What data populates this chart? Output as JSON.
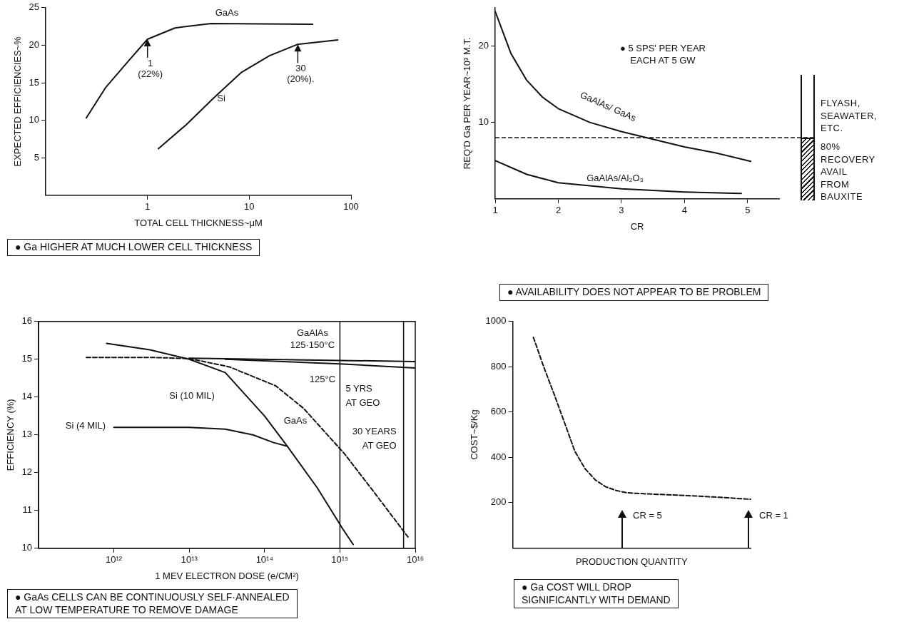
{
  "chart_data": [
    {
      "type": "line",
      "xlabel": "TOTAL CELL THICKNESS~μM",
      "ylabel": "EXPECTED EFFICIENCIES~%",
      "log": "x",
      "xlim": [
        0.1,
        100
      ],
      "xticks": [
        1,
        10,
        100
      ],
      "ylim": [
        0,
        25
      ],
      "yticks": [
        5,
        10,
        15,
        20,
        25
      ],
      "series": [
        {
          "color": "#111111",
          "x": [
            0.25,
            0.39,
            0.64,
            1.0,
            1.86,
            4.2,
            42
          ],
          "values": [
            10.3,
            14.4,
            17.8,
            20.8,
            22.3,
            22.9,
            22.8
          ]
        },
        {
          "color": "#111111",
          "x": [
            1.28,
            2.4,
            4.5,
            8.4,
            15.8,
            29.6,
            74
          ],
          "values": [
            6.2,
            9.4,
            13.0,
            16.4,
            18.6,
            20.1,
            20.7
          ]
        }
      ],
      "annotations": [
        "GaAs",
        "Si",
        {
          "text": "1\n(22%)",
          "x": 1,
          "y": 20.8
        },
        {
          "text": "30\n(20%).",
          "x": 30,
          "y": 20.1
        },
        "● Ga HIGHER AT MUCH LOWER CELL THICKNESS"
      ]
    },
    {
      "type": "line",
      "xlabel": "CR",
      "ylabel": "REQ'D Ga PER YEAR~10³ M.T.",
      "xlim": [
        1,
        5.5
      ],
      "xticks": [
        1,
        2,
        3,
        4,
        5
      ],
      "ylim": [
        0,
        25
      ],
      "yticks": [
        10,
        20
      ],
      "series": [
        {
          "color": "#111111",
          "x": [
            1,
            1.25,
            1.5,
            1.75,
            2,
            2.5,
            3,
            3.5,
            4,
            4.5,
            5.05
          ],
          "values": [
            24.5,
            19,
            15.5,
            13.3,
            11.8,
            10,
            8.8,
            7.8,
            6.8,
            6,
            4.9
          ]
        },
        {
          "color": "#111111",
          "x": [
            1,
            1.5,
            2,
            3,
            4,
            4.9
          ],
          "values": [
            5,
            3.2,
            2.1,
            1.3,
            0.9,
            0.7
          ]
        }
      ],
      "ref_lines": [
        {
          "axis": "y",
          "value": 8,
          "line_style": "dashed"
        }
      ],
      "annotations": [
        "GaAlAs/ GaAs",
        "GaAlAs/Al₂O₃",
        "● 5 SPS' PER YEAR\nEACH AT 5 GW",
        "FLYASH,\nSEAWATER,\nETC.",
        "80%\nRECOVERY\nAVAIL\nFROM\nBAUXITE",
        "● AVAILABILITY DOES NOT APPEAR TO BE PROBLEM"
      ]
    },
    {
      "type": "line",
      "xlabel": "1 MEV ELECTRON DOSE (e/CM²)",
      "ylabel": "EFFICIENCY (%)",
      "log": "x",
      "xlim": [
        100000000000.0,
        1e+16
      ],
      "xticks": [
        {
          "value": 1000000000000.0,
          "label": "10¹²"
        },
        {
          "value": 10000000000000.0,
          "label": "10¹³"
        },
        {
          "value": 100000000000000.0,
          "label": "10¹⁴"
        },
        {
          "value": 1000000000000000.0,
          "label": "10¹⁵"
        },
        {
          "value": 1e+16,
          "label": "10¹⁶"
        }
      ],
      "ylim": [
        10,
        16
      ],
      "yticks": [
        10,
        11,
        12,
        13,
        14,
        15,
        16
      ],
      "series": [
        {
          "color": "#111111",
          "x": [
            800000000000.0,
            3000000000000.0,
            10000000000000.0,
            30000000000000.0,
            100000000000000.0,
            200000000000000.0,
            500000000000000.0,
            1100000000000000.0,
            1500000000000000.0
          ],
          "values": [
            15.42,
            15.25,
            15.0,
            14.65,
            13.5,
            12.7,
            11.6,
            10.5,
            10.1
          ]
        },
        {
          "color": "#111111",
          "x": [
            1000000000000.0,
            3000000000000.0,
            10000000000000.0,
            30000000000000.0,
            70000000000000.0,
            130000000000000.0,
            200000000000000.0
          ],
          "values": [
            13.2,
            13.2,
            13.2,
            13.15,
            13.0,
            12.8,
            12.7
          ]
        },
        {
          "color": "#111111",
          "line_style": "dashed",
          "x": [
            430000000000.0,
            3000000000000.0,
            10000000000000.0,
            34000000000000.0,
            140000000000000.0,
            330000000000000.0,
            1150000000000000.0,
            2800000000000000.0,
            8000000000000000.0
          ],
          "values": [
            15.05,
            15.05,
            15.02,
            14.8,
            14.3,
            13.7,
            12.5,
            11.5,
            10.3
          ]
        },
        {
          "color": "#111111",
          "x": [
            10000000000000.0,
            1e+16
          ],
          "values": [
            15.03,
            14.94
          ]
        },
        {
          "color": "#111111",
          "x": [
            30000000000000.0,
            1000000000000000.0,
            1e+16
          ],
          "values": [
            15.0,
            14.88,
            14.77
          ]
        }
      ],
      "ref_lines": [
        {
          "axis": "x",
          "value": 1000000000000000.0,
          "label": "5 YRS AT GEO"
        },
        {
          "axis": "x",
          "value": 7000000000000000.0,
          "label": "30 YEARS AT GEO"
        }
      ],
      "annotations": [
        "GaAlAs\n125·150°C",
        "125°C",
        "Si (10 MIL)",
        "Si (4 MIL)",
        "GaAs",
        "● GaAs CELLS CAN BE CONTINUOUSLY SELF·ANNEALED\nAT LOW TEMPERATURE TO REMOVE DAMAGE"
      ]
    },
    {
      "type": "line",
      "xlabel": "PRODUCTION QUANTITY",
      "ylabel": "COST~$/Kg",
      "tick_labels": "y",
      "line_style": "dashed",
      "categories": [
        null,
        null,
        null,
        null,
        null,
        null,
        null,
        null,
        null,
        null,
        null,
        null,
        null,
        null,
        null,
        null,
        null,
        null,
        null,
        null,
        null,
        null,
        null,
        null
      ],
      "ylim": [
        0,
        1000
      ],
      "yticks": [
        200,
        400,
        600,
        800,
        1000
      ],
      "series": [
        {
          "color": "#111111",
          "values": [
            null,
            null,
            930,
            800,
            680,
            555,
            428,
            350,
            300,
            270,
            254,
            244,
            241,
            239,
            237,
            235,
            233,
            231,
            229,
            226,
            224,
            221,
            218,
            215
          ]
        }
      ],
      "annotations": [
        "CR = 5",
        "CR = 1",
        "● Ga COST WILL DROP\nSIGNIFICANTLY WITH DEMAND"
      ]
    }
  ]
}
